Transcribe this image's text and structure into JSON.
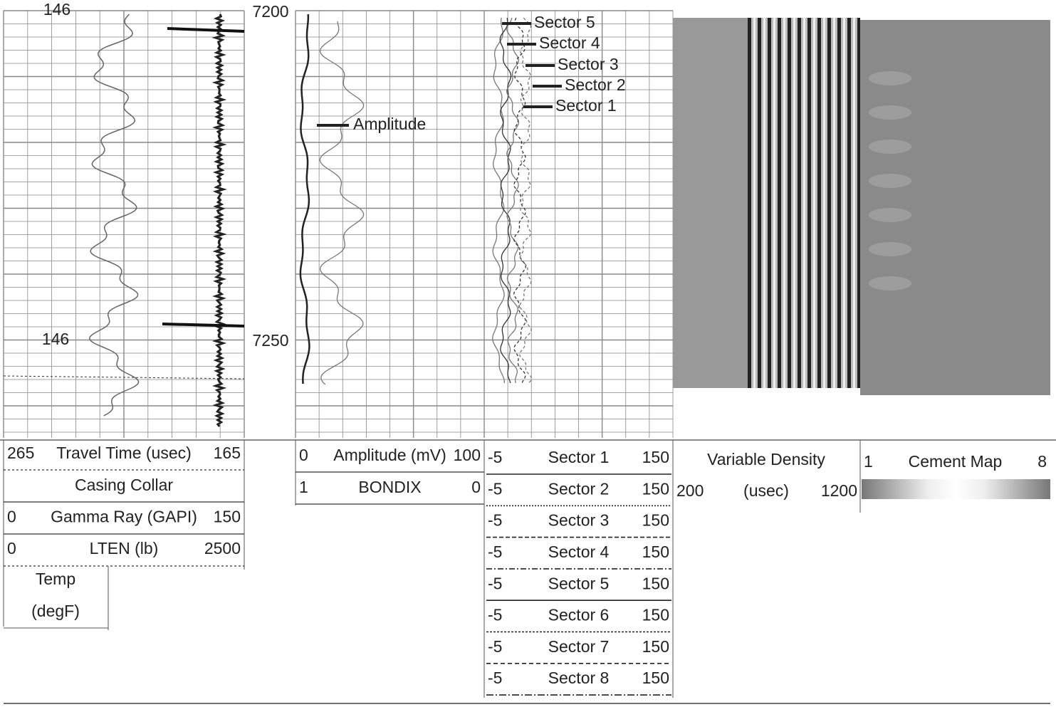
{
  "track1": {
    "temp_labels": [
      "146",
      "146"
    ]
  },
  "depth_labels": [
    "7200",
    "7250"
  ],
  "annotations": {
    "amplitude": "Amplitude",
    "sectors": [
      "Sector 5",
      "Sector 4",
      "Sector 3",
      "Sector 2",
      "Sector 1"
    ]
  },
  "headers": {
    "track1": [
      {
        "min": "265",
        "name": "Travel Time (usec)",
        "max": "165"
      },
      {
        "name": "Casing Collar"
      },
      {
        "min": "0",
        "name": "Gamma Ray (GAPI)",
        "max": "150"
      },
      {
        "min": "0",
        "name": "LTEN (lb)",
        "max": "2500"
      }
    ],
    "temp": [
      "Temp",
      "(degF)"
    ],
    "track2": [
      {
        "min": "0",
        "name": "Amplitude (mV)",
        "max": "100"
      },
      {
        "min": "1",
        "name": "BONDIX",
        "max": "0"
      }
    ],
    "track3": [
      {
        "min": "-5",
        "name": "Sector 1",
        "max": "150"
      },
      {
        "min": "-5",
        "name": "Sector 2",
        "max": "150"
      },
      {
        "min": "-5",
        "name": "Sector 3",
        "max": "150"
      },
      {
        "min": "-5",
        "name": "Sector 4",
        "max": "150"
      },
      {
        "min": "-5",
        "name": "Sector 5",
        "max": "150"
      },
      {
        "min": "-5",
        "name": "Sector 6",
        "max": "150"
      },
      {
        "min": "-5",
        "name": "Sector 7",
        "max": "150"
      },
      {
        "min": "-5",
        "name": "Sector 8",
        "max": "150"
      }
    ],
    "vdl": {
      "name": "Variable Density",
      "min": "200",
      "unit": "(usec)",
      "max": "1200"
    },
    "cement": {
      "min": "1",
      "name": "Cement Map",
      "max": "8"
    }
  }
}
